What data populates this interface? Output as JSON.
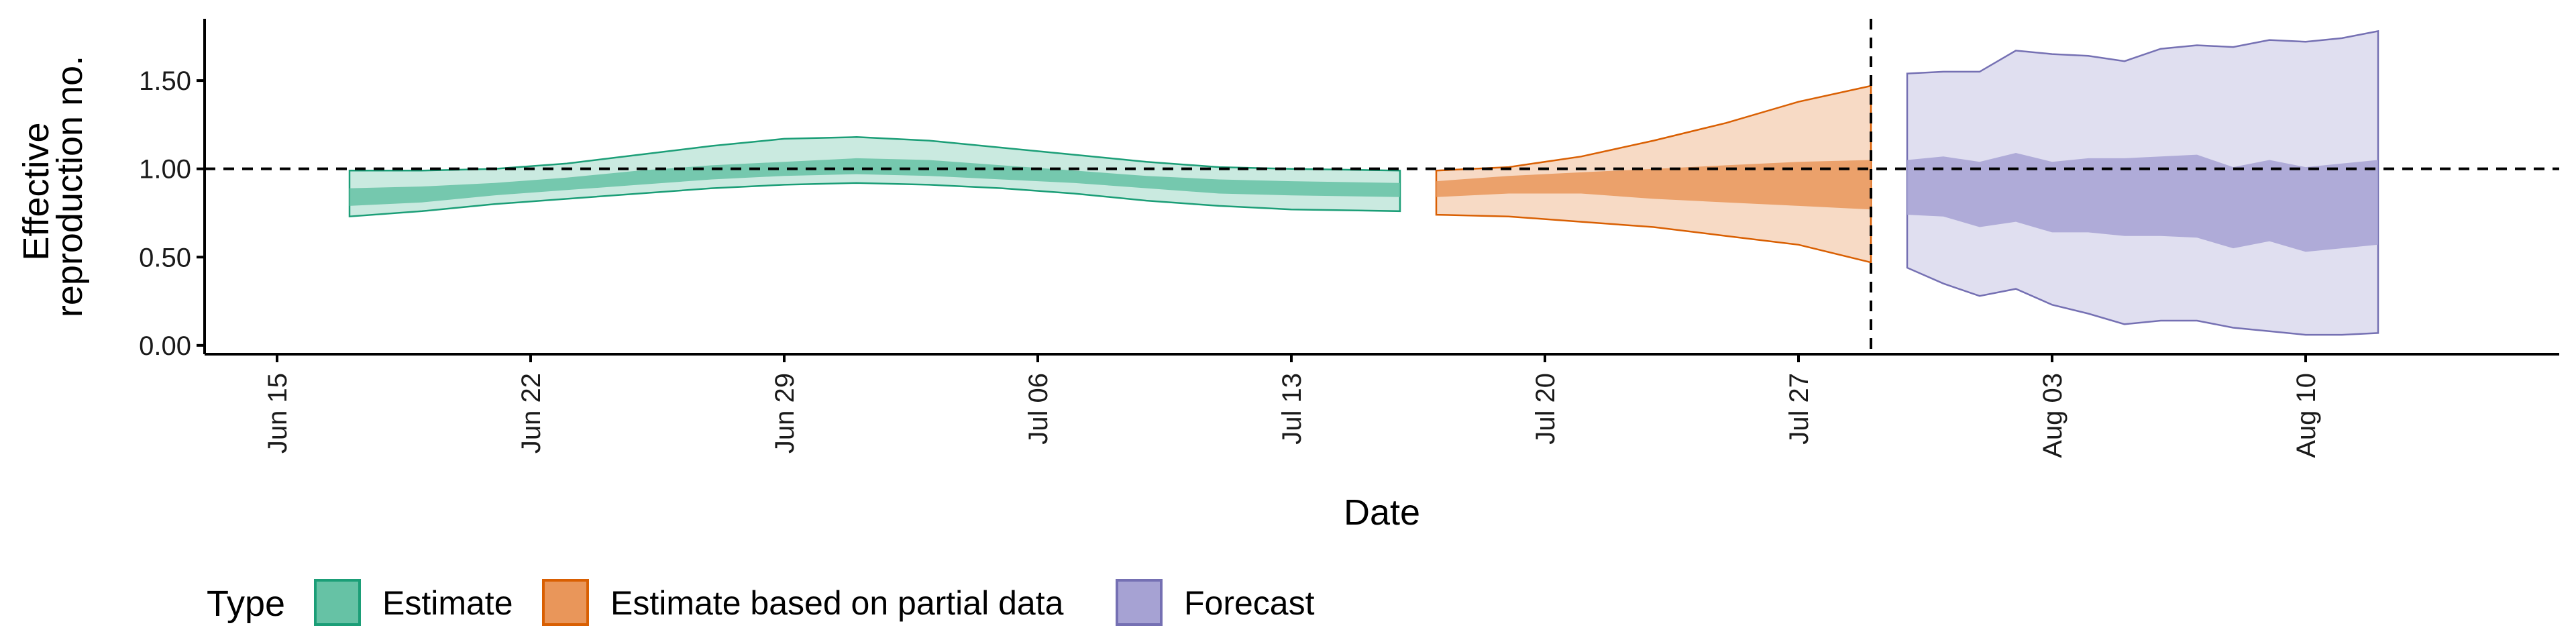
{
  "chart_data": {
    "type": "area",
    "title": "",
    "xlabel": "Date",
    "ylabel_lines": [
      "Effective",
      "reproduction no."
    ],
    "x_start_date": "2020-06-13",
    "xlim": [
      "2020-06-13",
      "2020-08-17"
    ],
    "ylim": [
      -0.05,
      1.85
    ],
    "x_ticks": [
      {
        "date": "2020-06-15",
        "label": "Jun 15"
      },
      {
        "date": "2020-06-22",
        "label": "Jun 22"
      },
      {
        "date": "2020-06-29",
        "label": "Jun 29"
      },
      {
        "date": "2020-07-06",
        "label": "Jul 06"
      },
      {
        "date": "2020-07-13",
        "label": "Jul 13"
      },
      {
        "date": "2020-07-20",
        "label": "Jul 20"
      },
      {
        "date": "2020-07-27",
        "label": "Jul 27"
      },
      {
        "date": "2020-08-03",
        "label": "Aug 03"
      },
      {
        "date": "2020-08-10",
        "label": "Aug 10"
      }
    ],
    "y_ticks": [
      {
        "value": 0.0,
        "label": "0.00"
      },
      {
        "value": 0.5,
        "label": "0.50"
      },
      {
        "value": 1.0,
        "label": "1.00"
      },
      {
        "value": 1.5,
        "label": "1.50"
      }
    ],
    "reference_line_y": 1.0,
    "forecast_date_line": "2020-07-29",
    "grid": false,
    "legend_position": "bottom",
    "legend_title": "Type",
    "series": [
      {
        "name": "Estimate",
        "color": "#1b9e77",
        "fill": "#66c2a5",
        "x": [
          "2020-06-17",
          "2020-06-19",
          "2020-06-21",
          "2020-06-23",
          "2020-06-25",
          "2020-06-27",
          "2020-06-29",
          "2020-07-01",
          "2020-07-03",
          "2020-07-05",
          "2020-07-07",
          "2020-07-09",
          "2020-07-11",
          "2020-07-13",
          "2020-07-16"
        ],
        "outer_lower": [
          0.73,
          0.76,
          0.8,
          0.83,
          0.86,
          0.89,
          0.91,
          0.92,
          0.91,
          0.89,
          0.86,
          0.82,
          0.79,
          0.77,
          0.76
        ],
        "outer_upper": [
          0.99,
          0.99,
          1.0,
          1.03,
          1.08,
          1.13,
          1.17,
          1.18,
          1.16,
          1.12,
          1.08,
          1.04,
          1.01,
          1.0,
          0.99
        ],
        "inner_lower": [
          0.79,
          0.81,
          0.85,
          0.88,
          0.91,
          0.94,
          0.96,
          0.97,
          0.96,
          0.94,
          0.92,
          0.89,
          0.86,
          0.85,
          0.84
        ],
        "inner_upper": [
          0.89,
          0.9,
          0.92,
          0.95,
          0.99,
          1.02,
          1.04,
          1.06,
          1.05,
          1.02,
          0.99,
          0.96,
          0.94,
          0.93,
          0.92
        ]
      },
      {
        "name": "Estimate based on partial data",
        "color": "#d95f02",
        "fill": "#e9965a",
        "x": [
          "2020-07-17",
          "2020-07-19",
          "2020-07-21",
          "2020-07-23",
          "2020-07-25",
          "2020-07-27",
          "2020-07-29"
        ],
        "outer_lower": [
          0.74,
          0.73,
          0.7,
          0.67,
          0.62,
          0.57,
          0.47
        ],
        "outer_upper": [
          0.99,
          1.01,
          1.07,
          1.16,
          1.26,
          1.38,
          1.47
        ],
        "inner_lower": [
          0.84,
          0.86,
          0.86,
          0.83,
          0.81,
          0.79,
          0.77
        ],
        "inner_upper": [
          0.93,
          0.96,
          0.98,
          1.0,
          1.02,
          1.04,
          1.05
        ]
      },
      {
        "name": "Forecast",
        "color": "#7570b3",
        "fill": "#a6a2d3",
        "x": [
          "2020-07-30",
          "2020-07-31",
          "2020-08-01",
          "2020-08-02",
          "2020-08-03",
          "2020-08-04",
          "2020-08-05",
          "2020-08-06",
          "2020-08-07",
          "2020-08-08",
          "2020-08-09",
          "2020-08-10",
          "2020-08-11",
          "2020-08-12"
        ],
        "outer_lower": [
          0.44,
          0.35,
          0.28,
          0.32,
          0.23,
          0.18,
          0.12,
          0.14,
          0.14,
          0.1,
          0.08,
          0.06,
          0.06,
          0.07
        ],
        "outer_upper": [
          1.54,
          1.55,
          1.55,
          1.67,
          1.65,
          1.64,
          1.61,
          1.68,
          1.7,
          1.69,
          1.73,
          1.72,
          1.74,
          1.78
        ],
        "inner_lower": [
          0.74,
          0.73,
          0.67,
          0.7,
          0.64,
          0.64,
          0.62,
          0.62,
          0.61,
          0.55,
          0.59,
          0.53,
          0.55,
          0.57
        ],
        "inner_upper": [
          1.05,
          1.07,
          1.04,
          1.09,
          1.04,
          1.06,
          1.06,
          1.07,
          1.08,
          1.01,
          1.05,
          1.01,
          1.03,
          1.05
        ]
      }
    ]
  }
}
